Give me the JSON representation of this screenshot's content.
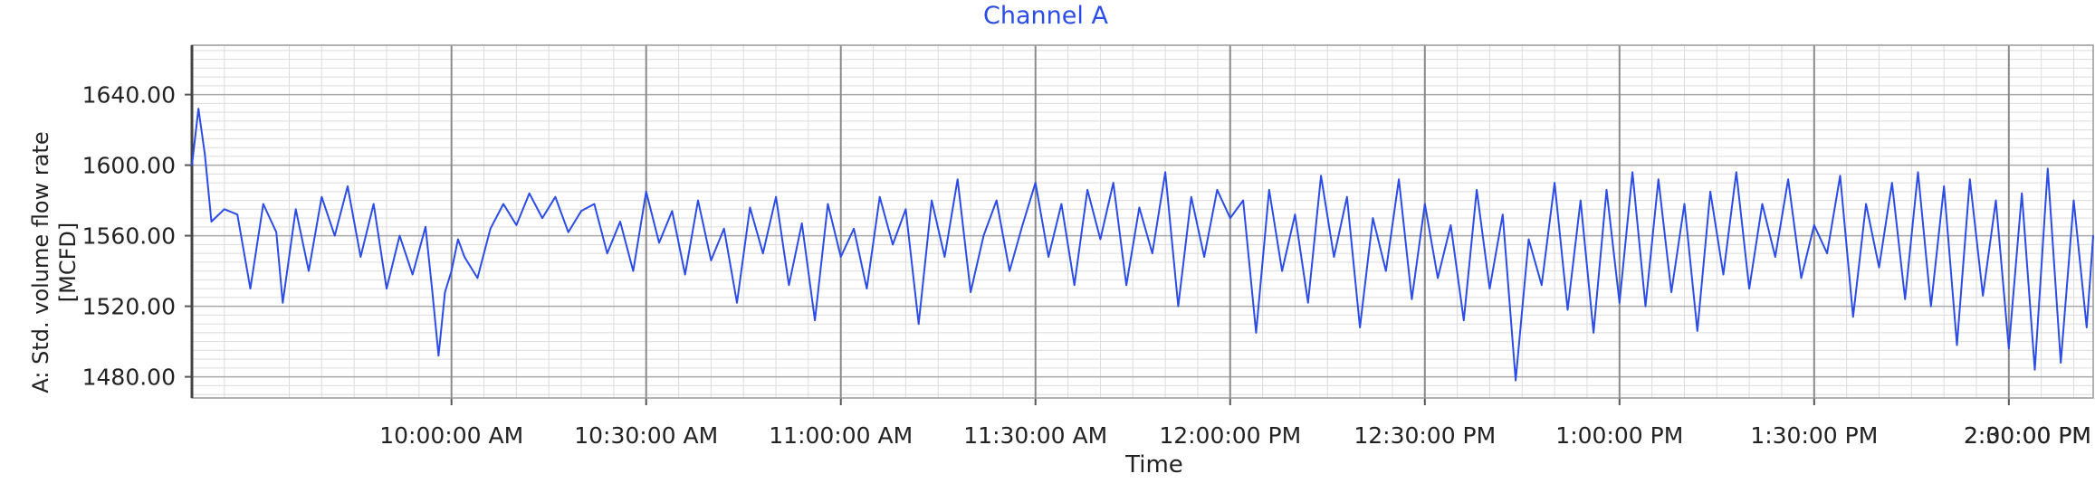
{
  "chart_data": {
    "type": "line",
    "title": "Channel A",
    "xlabel": "Time",
    "ylabel": "A: Std. volume flow rate\n[MCFD]",
    "ylim": [
      1468,
      1668
    ],
    "y_ticks": [
      1480,
      1520,
      1560,
      1600,
      1640
    ],
    "y_tick_labels": [
      "1480.00",
      "1520.00",
      "1560.00",
      "1600.00",
      "1640.00"
    ],
    "xlim_minutes_from_midnight": [
      560,
      853
    ],
    "x_ticks": [
      "10:00:00 AM",
      "10:30:00 AM",
      "11:00:00 AM",
      "11:30:00 AM",
      "12:00:00 PM",
      "12:30:00 PM",
      "1:00:00 PM",
      "1:30:00 PM",
      "2:00:00 PM",
      "2:30:00 PM"
    ],
    "x_tick_minutes": [
      600,
      630,
      660,
      690,
      720,
      750,
      780,
      810,
      840,
      870
    ],
    "grid": true,
    "colors": {
      "series": "#2b4ce6",
      "title": "#2b4ce6",
      "grid_major": "#8a8a8a",
      "grid_minor": "#dcdcdc"
    },
    "series": [
      {
        "name": "",
        "x_minutes": [
          560,
          561,
          562,
          563,
          565,
          567,
          569,
          571,
          573,
          574,
          576,
          578,
          580,
          582,
          584,
          586,
          588,
          590,
          592,
          594,
          596,
          597,
          598,
          599,
          600,
          601,
          602,
          604,
          606,
          608,
          610,
          612,
          614,
          616,
          618,
          620,
          622,
          624,
          626,
          628,
          630,
          632,
          634,
          636,
          638,
          640,
          642,
          644,
          646,
          648,
          650,
          652,
          654,
          656,
          658,
          660,
          662,
          664,
          666,
          668,
          670,
          672,
          674,
          676,
          678,
          680,
          682,
          684,
          686,
          688,
          690,
          692,
          694,
          696,
          698,
          700,
          702,
          704,
          706,
          708,
          710,
          712,
          714,
          716,
          718,
          720,
          722,
          724,
          726,
          728,
          730,
          732,
          734,
          736,
          738,
          740,
          742,
          744,
          746,
          748,
          750,
          752,
          754,
          756,
          758,
          760,
          762,
          764,
          766,
          768,
          770,
          772,
          774,
          776,
          778,
          780,
          782,
          784,
          786,
          788,
          790,
          792,
          794,
          796,
          798,
          800,
          802,
          804,
          806,
          808,
          810,
          812,
          814,
          816,
          818,
          820,
          822,
          824,
          826,
          828,
          830,
          832,
          834,
          836,
          838,
          840,
          842,
          844,
          846,
          848,
          850,
          852,
          853
        ],
        "values": [
          1600,
          1632,
          1606,
          1568,
          1575,
          1572,
          1530,
          1578,
          1562,
          1522,
          1575,
          1540,
          1582,
          1560,
          1588,
          1548,
          1578,
          1530,
          1560,
          1538,
          1565,
          1530,
          1492,
          1528,
          1540,
          1558,
          1548,
          1536,
          1564,
          1578,
          1566,
          1584,
          1570,
          1582,
          1562,
          1574,
          1578,
          1550,
          1568,
          1540,
          1585,
          1556,
          1574,
          1538,
          1580,
          1546,
          1564,
          1522,
          1576,
          1550,
          1582,
          1532,
          1567,
          1512,
          1578,
          1548,
          1564,
          1530,
          1582,
          1555,
          1575,
          1510,
          1580,
          1548,
          1592,
          1528,
          1560,
          1580,
          1540,
          1566,
          1590,
          1548,
          1578,
          1532,
          1586,
          1558,
          1590,
          1532,
          1576,
          1550,
          1596,
          1520,
          1582,
          1548,
          1586,
          1570,
          1580,
          1505,
          1586,
          1540,
          1572,
          1522,
          1594,
          1548,
          1582,
          1508,
          1570,
          1540,
          1592,
          1524,
          1578,
          1536,
          1566,
          1512,
          1586,
          1530,
          1572,
          1478,
          1558,
          1532,
          1590,
          1518,
          1580,
          1505,
          1586,
          1522,
          1596,
          1520,
          1592,
          1528,
          1578,
          1506,
          1585,
          1538,
          1596,
          1530,
          1578,
          1548,
          1592,
          1536,
          1566,
          1550,
          1594,
          1514,
          1578,
          1542,
          1590,
          1524,
          1596,
          1520,
          1588,
          1498,
          1592,
          1526,
          1580,
          1496,
          1584,
          1484,
          1598,
          1488,
          1580,
          1508,
          1560
        ]
      }
    ]
  }
}
